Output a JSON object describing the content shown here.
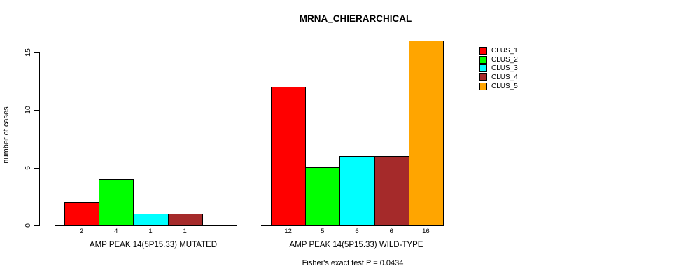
{
  "title": "MRNA_CHIERARCHICAL",
  "y_axis": {
    "label": "number of cases",
    "tick_labels": [
      "0",
      "5",
      "10",
      "15"
    ]
  },
  "legend": {
    "items": [
      {
        "label": "CLUS_1",
        "color": "#ff0000"
      },
      {
        "label": "CLUS_2",
        "color": "#00ff00"
      },
      {
        "label": "CLUS_3",
        "color": "#00ffff"
      },
      {
        "label": "CLUS_4",
        "color": "#a52a2a"
      },
      {
        "label": "CLUS_5",
        "color": "#ffa500"
      }
    ]
  },
  "footnote": "Fisher's exact test P = 0.0434",
  "chart_data": {
    "type": "bar",
    "title": "MRNA_CHIERARCHICAL",
    "ylabel": "number of cases",
    "ylim": [
      0,
      16.5
    ],
    "yticks": [
      0,
      5,
      10,
      15
    ],
    "grid": false,
    "legend_position": "right",
    "series_names": [
      "CLUS_1",
      "CLUS_2",
      "CLUS_3",
      "CLUS_4",
      "CLUS_5"
    ],
    "colors": [
      "#ff0000",
      "#00ff00",
      "#00ffff",
      "#a52a2a",
      "#ffa500"
    ],
    "groups": [
      {
        "label": "AMP PEAK 14(5P15.33) MUTATED",
        "values": [
          2,
          4,
          1,
          1,
          0
        ],
        "value_labels": [
          "2",
          "4",
          "1",
          "1",
          ""
        ]
      },
      {
        "label": "AMP PEAK 14(5P15.33) WILD-TYPE",
        "values": [
          12,
          5,
          6,
          6,
          16
        ],
        "value_labels": [
          "12",
          "5",
          "6",
          "6",
          "16"
        ]
      }
    ],
    "annotation": "Fisher's exact test P = 0.0434"
  }
}
